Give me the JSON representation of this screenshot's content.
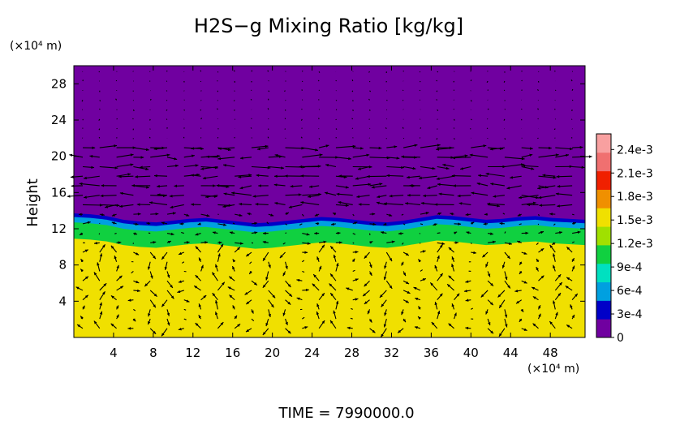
{
  "chart_data": {
    "type": "heatmap",
    "title": "H2S−g Mixing Ratio [kg/kg]",
    "ylabel": "Height",
    "x_unit_label": "(×10⁴ m)",
    "y_unit_label": "(×10⁴ m)",
    "xlim": [
      0,
      51.5
    ],
    "ylim": [
      0,
      30
    ],
    "x_ticks": [
      4,
      8,
      12,
      16,
      20,
      24,
      28,
      32,
      36,
      40,
      44,
      48
    ],
    "y_ticks": [
      4,
      8,
      12,
      16,
      20,
      24,
      28
    ],
    "colorbar": {
      "range": [
        0,
        0.0026
      ],
      "tick_values": [
        0,
        0.0003,
        0.0006,
        0.0009,
        0.0012,
        0.0015,
        0.0018,
        0.0021,
        0.0024
      ],
      "tick_labels": [
        "0",
        "3e-4",
        "6e-4",
        "9e-4",
        "1.2e-3",
        "1.5e-3",
        "1.8e-3",
        "2.1e-3",
        "2.4e-3"
      ],
      "colors": [
        "#7000a0",
        "#0000c8",
        "#00a0e0",
        "#00e0c0",
        "#10d040",
        "#a0e000",
        "#f0e000",
        "#f09000",
        "#f02000",
        "#f07070",
        "#f8a0a0"
      ]
    },
    "field": {
      "lower_layer_value": 0.00165,
      "upper_layer_value": 2e-05,
      "interface_height": [
        13.5,
        13.4,
        13.2,
        12.8,
        12.6,
        12.5,
        12.7,
        12.9,
        13.0,
        12.8,
        12.6,
        12.4,
        12.5,
        12.7,
        12.9,
        13.1,
        13.0,
        12.8,
        12.6,
        12.5,
        12.7,
        13.0,
        13.3,
        13.2,
        13.0,
        12.8,
        12.9,
        13.1,
        13.2,
        13.0,
        12.9,
        12.8
      ],
      "interface_x": [
        0,
        1.66,
        3.32,
        4.98,
        6.64,
        8.3,
        9.97,
        11.63,
        13.29,
        14.95,
        16.61,
        18.27,
        19.94,
        21.6,
        23.26,
        24.92,
        26.58,
        28.24,
        29.9,
        31.56,
        33.22,
        34.89,
        36.55,
        38.21,
        39.87,
        41.53,
        43.19,
        44.85,
        46.51,
        48.18,
        49.84,
        51.5
      ]
    },
    "wind_field": {
      "description": "velocity arrows",
      "upper_band_direction": "mixed east/west jets near 16-20",
      "lower_band_pattern": "convective cells"
    },
    "time_label": "TIME  =  7990000.0"
  }
}
